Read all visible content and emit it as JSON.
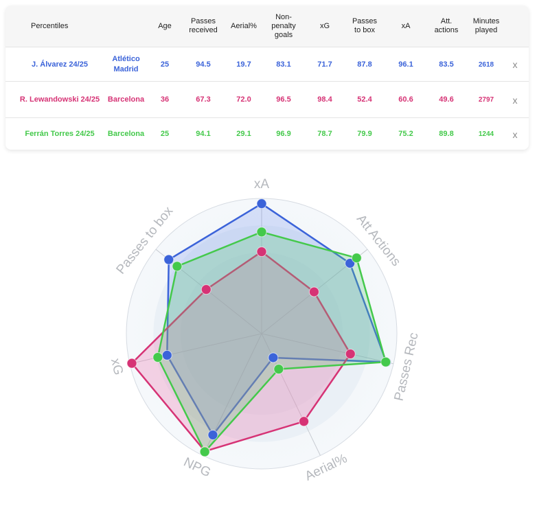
{
  "table": {
    "headers": [
      {
        "key": "name",
        "label": "Percentiles"
      },
      {
        "key": "team",
        "label": ""
      },
      {
        "key": "age",
        "label": "Age"
      },
      {
        "key": "passes_received",
        "label": "Passes received"
      },
      {
        "key": "aerial",
        "label": "Aerial%"
      },
      {
        "key": "npg",
        "label": "Non-penalty goals"
      },
      {
        "key": "xg",
        "label": "xG"
      },
      {
        "key": "passes_box",
        "label": "Passes to box"
      },
      {
        "key": "xa",
        "label": "xA"
      },
      {
        "key": "att_actions",
        "label": "Att. actions"
      },
      {
        "key": "minutes",
        "label": "Minutes played"
      }
    ],
    "close_label": "x",
    "rows": [
      {
        "color": "#3b63d9",
        "name": "J. Álvarez 24/25",
        "team": "Atlético Madrid",
        "age": "25",
        "passes_received": "94.5",
        "aerial": "19.7",
        "npg": "83.1",
        "xg": "71.7",
        "passes_box": "87.8",
        "xa": "96.1",
        "att_actions": "83.5",
        "minutes": "2618"
      },
      {
        "color": "#d63375",
        "name": "R. Lewandowski 24/25",
        "team": "Barcelona",
        "age": "36",
        "passes_received": "67.3",
        "aerial": "72.0",
        "npg": "96.5",
        "xg": "98.4",
        "passes_box": "52.4",
        "xa": "60.6",
        "att_actions": "49.6",
        "minutes": "2797"
      },
      {
        "color": "#44c94b",
        "name": "Ferrán Torres 24/25",
        "team": "Barcelona",
        "age": "25",
        "passes_received": "94.1",
        "aerial": "29.1",
        "npg": "96.9",
        "xg": "78.7",
        "passes_box": "79.9",
        "xa": "75.2",
        "att_actions": "89.8",
        "minutes": "1244"
      }
    ]
  },
  "chart_data": {
    "type": "radar",
    "axes": [
      "xA",
      "Att Actions",
      "Passes Rec",
      "Aerial%",
      "NPG",
      "xG",
      "Passes to box"
    ],
    "range": [
      0,
      100
    ],
    "series": [
      {
        "name": "J. Álvarez 24/25",
        "color": "#3b63d9",
        "fill": "rgba(80,120,235,0.20)",
        "values": [
          96.1,
          83.5,
          94.5,
          19.7,
          83.1,
          71.7,
          87.8
        ]
      },
      {
        "name": "R. Lewandowski 24/25",
        "color": "#d63375",
        "fill": "rgba(235,90,160,0.25)",
        "values": [
          60.6,
          49.6,
          67.3,
          72.0,
          96.5,
          98.4,
          52.4
        ]
      },
      {
        "name": "Ferrán Torres 24/25",
        "color": "#44c94b",
        "fill": "rgba(95,200,120,0.28)",
        "values": [
          75.2,
          89.8,
          94.1,
          29.1,
          96.9,
          78.7,
          79.9
        ]
      }
    ]
  }
}
